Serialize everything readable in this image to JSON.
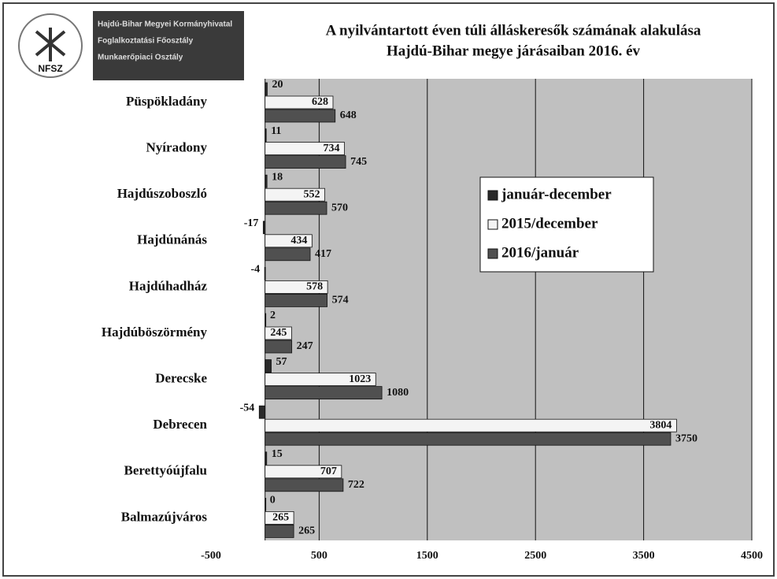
{
  "logo": {
    "name": "NFSZ",
    "lines": [
      "Hajdú-Bihar Megyei Kormányhivatal",
      "Foglalkoztatási Főosztály",
      "Munkaerőpiaci Osztály"
    ]
  },
  "chart_data": {
    "type": "hbar",
    "title": [
      "A nyilvántartott éven túli álláskeresők számának alakulása",
      "Hajdú-Bihar megye járásaiban 2016. év"
    ],
    "categories": [
      "Püspökladány",
      "Nyíradony",
      "Hajdúszoboszló",
      "Hajdúnánás",
      "Hajdúhadház",
      "Hajdúböszörmény",
      "Derecske",
      "Debrecen",
      "Berettyóújfalu",
      "Balmazújváros"
    ],
    "series": [
      {
        "name": "január-december",
        "color": "#2a2a2a",
        "values": [
          20,
          11,
          18,
          -17,
          -4,
          2,
          57,
          -54,
          15,
          0
        ]
      },
      {
        "name": "2015/december",
        "color": "#f4f4f4",
        "values": [
          628,
          734,
          552,
          434,
          578,
          245,
          1023,
          3804,
          707,
          265
        ]
      },
      {
        "name": "2016/január",
        "color": "#505050",
        "values": [
          648,
          745,
          570,
          417,
          574,
          247,
          1080,
          3750,
          722,
          265
        ]
      }
    ],
    "xlim": [
      -500,
      4500
    ],
    "xticks": [
      -500,
      500,
      1500,
      2500,
      3500,
      4500
    ],
    "grid": true,
    "legend": "center right"
  }
}
